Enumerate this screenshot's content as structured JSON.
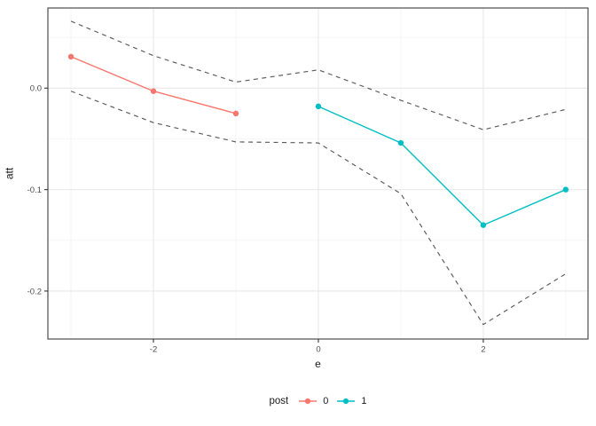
{
  "figure": {
    "background": "#ffffff"
  },
  "colors": {
    "series_post0": "#F8766D",
    "series_post1": "#00BFC4",
    "ci_dashed": "#595959",
    "grid_major": "#e8e8e8",
    "grid_minor": "#f4f4f4",
    "panel_border": "#4d4d4d",
    "tick_mark": "#333333",
    "tick_text": "#4d4d4d"
  },
  "legend": {
    "title": "post",
    "items": [
      {
        "label": "0",
        "color": "#F8766D"
      },
      {
        "label": "1",
        "color": "#00BFC4"
      }
    ]
  },
  "chart_data": {
    "type": "line",
    "title": "",
    "xlabel": "e",
    "ylabel": "att",
    "xlim": [
      -3.28,
      3.27
    ],
    "ylim": [
      -0.2473,
      0.079
    ],
    "grid": true,
    "legend_position": "bottom",
    "x_ticks": [
      {
        "value": -2,
        "label": "-2"
      },
      {
        "value": 0,
        "label": "0"
      },
      {
        "value": 2,
        "label": "2"
      }
    ],
    "x_minor": [
      -3,
      -1,
      1,
      3
    ],
    "y_ticks": [
      {
        "value": 0,
        "label": "0.0"
      },
      {
        "value": -0.1,
        "label": "-0.1"
      },
      {
        "value": -0.2,
        "label": "-0.2"
      }
    ],
    "y_minor": [
      0.05,
      -0.05,
      -0.15
    ],
    "series": [
      {
        "name": "post-0",
        "legend_label": "0",
        "color": "#F8766D",
        "style": "solid",
        "points": true,
        "x": [
          -3,
          -2,
          -1
        ],
        "y": [
          0.031,
          -0.003,
          -0.025
        ]
      },
      {
        "name": "post-1",
        "legend_label": "1",
        "color": "#00BFC4",
        "style": "solid",
        "points": true,
        "x": [
          0,
          1,
          2,
          3
        ],
        "y": [
          -0.018,
          -0.054,
          -0.135,
          -0.1
        ]
      },
      {
        "name": "ci-upper",
        "color": "#595959",
        "style": "dashed",
        "points": false,
        "x": [
          -3,
          -2,
          -1,
          0,
          1,
          2,
          3
        ],
        "y": [
          0.066,
          0.032,
          0.006,
          0.018,
          -0.012,
          -0.041,
          -0.021
        ]
      },
      {
        "name": "ci-lower",
        "color": "#595959",
        "style": "dashed",
        "points": false,
        "x": [
          -3,
          -2,
          -1,
          0,
          1,
          2,
          3
        ],
        "y": [
          -0.003,
          -0.034,
          -0.053,
          -0.054,
          -0.104,
          -0.233,
          -0.183
        ]
      }
    ]
  }
}
